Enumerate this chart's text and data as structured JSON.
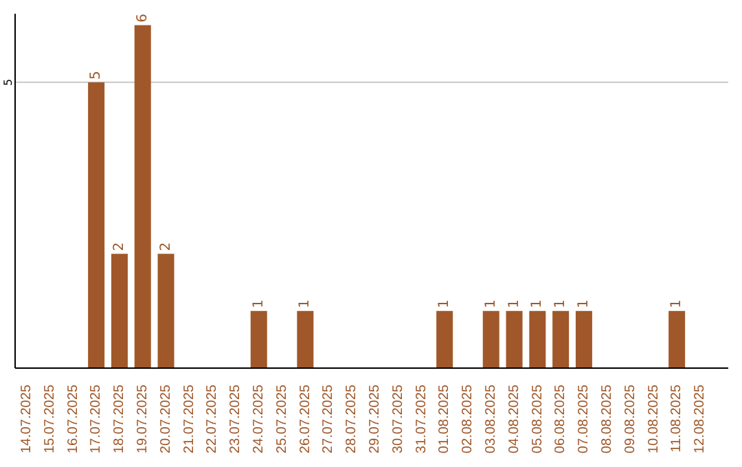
{
  "chart_data": {
    "type": "bar",
    "categories": [
      "14.07.2025",
      "15.07.2025",
      "16.07.2025",
      "17.07.2025",
      "18.07.2025",
      "19.07.2025",
      "20.07.2025",
      "21.07.2025",
      "22.07.2025",
      "23.07.2025",
      "24.07.2025",
      "25.07.2025",
      "26.07.2025",
      "27.07.2025",
      "28.07.2025",
      "29.07.2025",
      "30.07.2025",
      "31.07.2025",
      "01.08.2025",
      "02.08.2025",
      "03.08.2025",
      "04.08.2025",
      "05.08.2025",
      "06.08.2025",
      "07.08.2025",
      "08.08.2025",
      "09.08.2025",
      "10.08.2025",
      "11.08.2025",
      "12.08.2025"
    ],
    "values": [
      0,
      0,
      0,
      5,
      2,
      6,
      2,
      0,
      0,
      0,
      1,
      0,
      1,
      0,
      0,
      0,
      0,
      0,
      1,
      0,
      1,
      1,
      1,
      1,
      1,
      0,
      0,
      0,
      1,
      0
    ],
    "value_labels": [
      null,
      null,
      null,
      "5",
      "2",
      "6",
      "2",
      null,
      null,
      null,
      "1",
      null,
      "1",
      null,
      null,
      null,
      null,
      null,
      "1",
      null,
      "1",
      "1",
      "1",
      "1",
      "1",
      null,
      null,
      null,
      "1",
      null
    ],
    "color": "#a0582a",
    "ylim": [
      0,
      6.2
    ],
    "yticks": [
      5
    ],
    "grid": "y"
  }
}
